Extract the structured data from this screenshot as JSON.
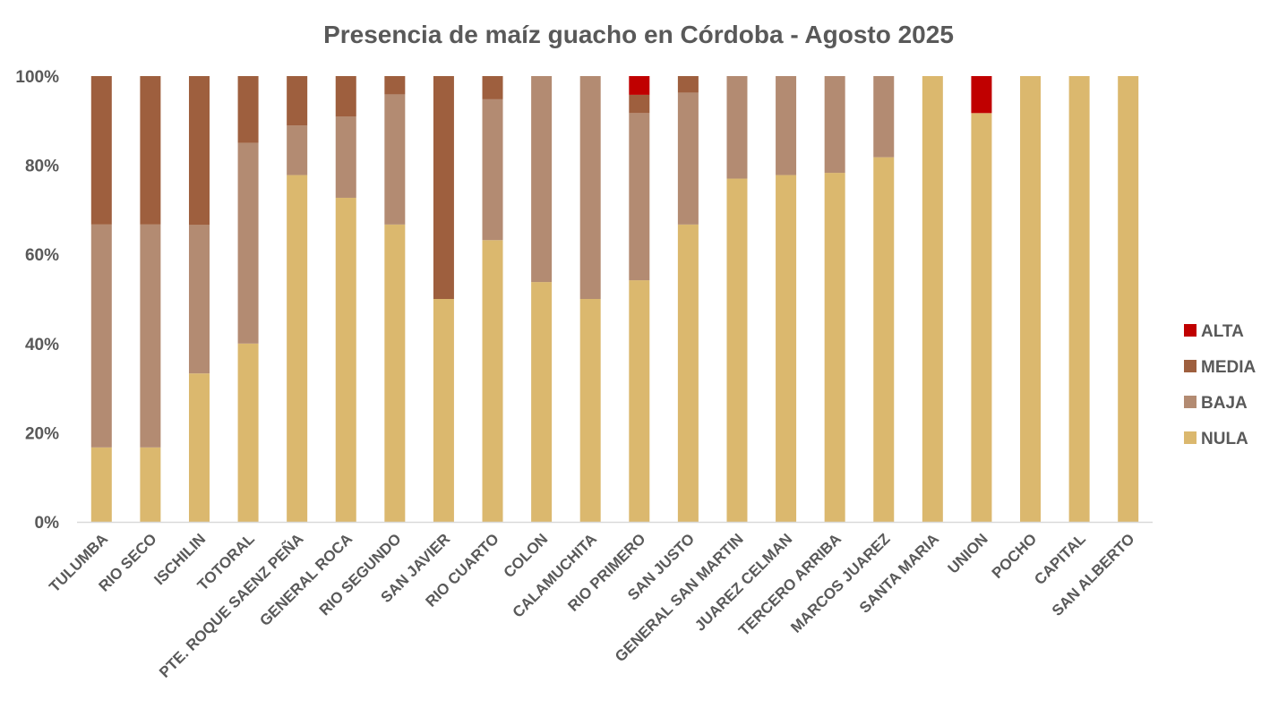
{
  "chart_data": {
    "type": "bar",
    "stacked": true,
    "normalized": true,
    "title": "Presencia de maíz guacho en Córdoba - Agosto 2025",
    "xlabel": "",
    "ylabel": "",
    "ylim": [
      0,
      100
    ],
    "y_ticks": [
      0,
      20,
      40,
      60,
      80,
      100
    ],
    "y_tick_labels": [
      "0%",
      "20%",
      "40%",
      "60%",
      "80%",
      "100%"
    ],
    "grid": false,
    "legend_position": "right",
    "categories": [
      "TULUMBA",
      "RIO SECO",
      "ISCHILIN",
      "TOTORAL",
      "PTE. ROQUE SAENZ PEÑA",
      "GENERAL ROCA",
      "RIO SEGUNDO",
      "SAN JAVIER",
      "RIO CUARTO",
      "COLON",
      "CALAMUCHITA",
      "RIO PRIMERO",
      "SAN JUSTO",
      "GENERAL SAN MARTIN",
      "JUAREZ CELMAN",
      "TERCERO ARRIBA",
      "MARCOS JUAREZ",
      "SANTA MARIA",
      "UNION",
      "POCHO",
      "CAPITAL",
      "SAN ALBERTO"
    ],
    "series": [
      {
        "name": "NULA",
        "color": "#DBB86E",
        "values": [
          16.7,
          16.7,
          33.3,
          40,
          77.8,
          72.7,
          66.7,
          50,
          63.2,
          53.8,
          50,
          54.2,
          66.7,
          77,
          77.8,
          78.3,
          81.8,
          100,
          91.7,
          100,
          100,
          100
        ]
      },
      {
        "name": "BAJA",
        "color": "#B38B72",
        "values": [
          50,
          50,
          33.3,
          45,
          11.1,
          18.2,
          29.2,
          0,
          31.6,
          46.2,
          50,
          37.5,
          29.6,
          23,
          22.2,
          21.7,
          18.2,
          0,
          0,
          0,
          0,
          0
        ]
      },
      {
        "name": "MEDIA",
        "color": "#9E5F3E",
        "values": [
          33.3,
          33.3,
          33.4,
          15,
          11.1,
          9.1,
          4.1,
          50,
          5.2,
          0,
          0,
          4.1,
          3.7,
          0,
          0,
          0,
          0,
          0,
          0,
          0,
          0,
          0
        ]
      },
      {
        "name": "ALTA",
        "color": "#C00000",
        "values": [
          0,
          0,
          0,
          0,
          0,
          0,
          0,
          0,
          0,
          0,
          0,
          4.2,
          0,
          0,
          0,
          0,
          0,
          0,
          8.3,
          0,
          0,
          0
        ]
      }
    ],
    "legend_order": [
      "ALTA",
      "MEDIA",
      "BAJA",
      "NULA"
    ],
    "axis_color": "#D9D9D9",
    "text_color": "#595959"
  }
}
